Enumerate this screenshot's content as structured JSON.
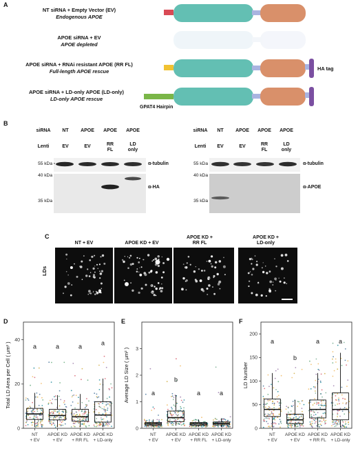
{
  "panel_letters": {
    "a": "A",
    "b": "B",
    "c": "C",
    "d": "D",
    "e": "E",
    "f": "F"
  },
  "constructs": [
    {
      "line1": "NT siRNA + Empty Vector (EV)",
      "line2": "Endogenous APOE",
      "tail": "red",
      "faded": false
    },
    {
      "line1": "APOE siRNA + EV",
      "line2": "APOE depleted",
      "tail": "none",
      "faded": true
    },
    {
      "line1": "APOE siRNA + RNAi resistant APOE (RR FL)",
      "line2": "Full-length APOE rescue",
      "tail": "yellow",
      "faded": false
    },
    {
      "line1": "APOE siRNA + LD-only APOE (LD-only)",
      "line2": "LD-only APOE rescue",
      "tail": "green",
      "faded": false
    }
  ],
  "construct_tags": {
    "ha_tag": "HA tag",
    "hairpin": "GPAT4 Hairpin"
  },
  "colors": {
    "main_domain": "#63bfb3",
    "c_domain": "#d9906a",
    "hinge": "#a9b4e0",
    "ha_tag": "#7b4fa1",
    "red_tail": "#d94a55",
    "yellow_tail": "#f1c232",
    "green_tail": "#7ab648"
  },
  "blots": [
    {
      "siRNA_label": "siRNA",
      "lenti_label": "Lenti",
      "lanes": [
        {
          "sirna": "NT",
          "lenti": [
            "EV"
          ]
        },
        {
          "sirna": "APOE",
          "lenti": [
            "EV"
          ]
        },
        {
          "sirna": "APOE",
          "lenti": [
            "RR",
            "FL"
          ]
        },
        {
          "sirna": "APOE",
          "lenti": [
            "LD",
            "only"
          ]
        }
      ],
      "markers": {
        "top": "55 kDa",
        "mid": "40 kDa",
        "low": "35 kDa"
      },
      "antibodies": {
        "top": "α-tubulin",
        "bottom": "α-HA"
      }
    },
    {
      "siRNA_label": "siRNA",
      "lenti_label": "Lenti",
      "lanes": [
        {
          "sirna": "NT",
          "lenti": [
            "EV"
          ]
        },
        {
          "sirna": "APOE",
          "lenti": [
            "EV"
          ]
        },
        {
          "sirna": "APOE",
          "lenti": [
            "RR",
            "FL"
          ]
        },
        {
          "sirna": "APOE",
          "lenti": [
            "LD",
            "only"
          ]
        }
      ],
      "markers": {
        "top": "55 kDa",
        "mid": "40 kDa",
        "low": "35 kDa"
      },
      "antibodies": {
        "top": "α-tubulin",
        "bottom": "α-APOE"
      }
    }
  ],
  "microscopy": {
    "row_label": "LDs",
    "conditions": [
      [
        "NT + EV"
      ],
      [
        "APOE KD + EV"
      ],
      [
        "APOE KD +",
        "RR FL"
      ],
      [
        "APOE KD +",
        "LD-only"
      ]
    ]
  },
  "chart_data": [
    {
      "type": "box",
      "panel": "D",
      "ylabel": "Total LD Area per Cell ( μm² )",
      "categories": [
        [
          "NT",
          "+ EV"
        ],
        [
          "APOE KD",
          "+ EV"
        ],
        [
          "APOE KD",
          "+ RR FL"
        ],
        [
          "APOE KD",
          "+ LD-only"
        ]
      ],
      "ylim": [
        0,
        48
      ],
      "yticks": [
        0,
        20,
        40
      ],
      "boxes": [
        {
          "whisker_low": 0.5,
          "q1": 4.0,
          "median": 6.5,
          "q3": 9.0,
          "whisker_high": 16.0
        },
        {
          "whisker_low": 0.5,
          "q1": 3.8,
          "median": 5.8,
          "q3": 8.6,
          "whisker_high": 15.0
        },
        {
          "whisker_low": 0.5,
          "q1": 3.2,
          "median": 5.2,
          "q3": 8.6,
          "whisker_high": 15.5
        },
        {
          "whisker_low": 0.5,
          "q1": 2.8,
          "median": 6.0,
          "q3": 12.0,
          "whisker_high": 22.5
        }
      ],
      "significance": [
        "a",
        "a",
        "a",
        "a"
      ],
      "sig_y": [
        36,
        36,
        36,
        37.5
      ]
    },
    {
      "type": "box",
      "panel": "E",
      "ylabel": "Average LD Size ( μm² )",
      "categories": [
        [
          "NT",
          "+ EV"
        ],
        [
          "APOE KD",
          "+ EV"
        ],
        [
          "APOE KD",
          "+ RR FL"
        ],
        [
          "APOE KD",
          "+ LD-only"
        ]
      ],
      "ylim": [
        0,
        4.0
      ],
      "yticks": [
        0,
        1,
        2,
        3
      ],
      "boxes": [
        {
          "whisker_low": 0.05,
          "q1": 0.12,
          "median": 0.17,
          "q3": 0.22,
          "whisker_high": 0.33
        },
        {
          "whisker_low": 0.1,
          "q1": 0.25,
          "median": 0.4,
          "q3": 0.65,
          "whisker_high": 1.25
        },
        {
          "whisker_low": 0.05,
          "q1": 0.12,
          "median": 0.17,
          "q3": 0.22,
          "whisker_high": 0.33
        },
        {
          "whisker_low": 0.05,
          "q1": 0.13,
          "median": 0.18,
          "q3": 0.24,
          "whisker_high": 0.38
        }
      ],
      "significance": [
        "a",
        "b",
        "a",
        "a"
      ],
      "sig_y": [
        1.25,
        1.75,
        1.25,
        1.25
      ]
    },
    {
      "type": "box",
      "panel": "F",
      "ylabel": "LD Number",
      "categories": [
        [
          "NT",
          "+ EV"
        ],
        [
          "APOE KD",
          "+ EV"
        ],
        [
          "APOE KD",
          "+ RR FL"
        ],
        [
          "APOE KD",
          "+ LD-only"
        ]
      ],
      "ylim": [
        0,
        225
      ],
      "yticks": [
        0,
        50,
        100,
        150,
        200
      ],
      "boxes": [
        {
          "whisker_low": 2,
          "q1": 25,
          "median": 40,
          "q3": 62,
          "whisker_high": 117
        },
        {
          "whisker_low": 2,
          "q1": 10,
          "median": 18,
          "q3": 30,
          "whisker_high": 60
        },
        {
          "whisker_low": 2,
          "q1": 22,
          "median": 40,
          "q3": 60,
          "whisker_high": 117
        },
        {
          "whisker_low": 2,
          "q1": 18,
          "median": 40,
          "q3": 75,
          "whisker_high": 160
        }
      ],
      "significance": [
        "a",
        "b",
        "a",
        "a"
      ],
      "sig_y": [
        180,
        145,
        180,
        180
      ]
    }
  ]
}
